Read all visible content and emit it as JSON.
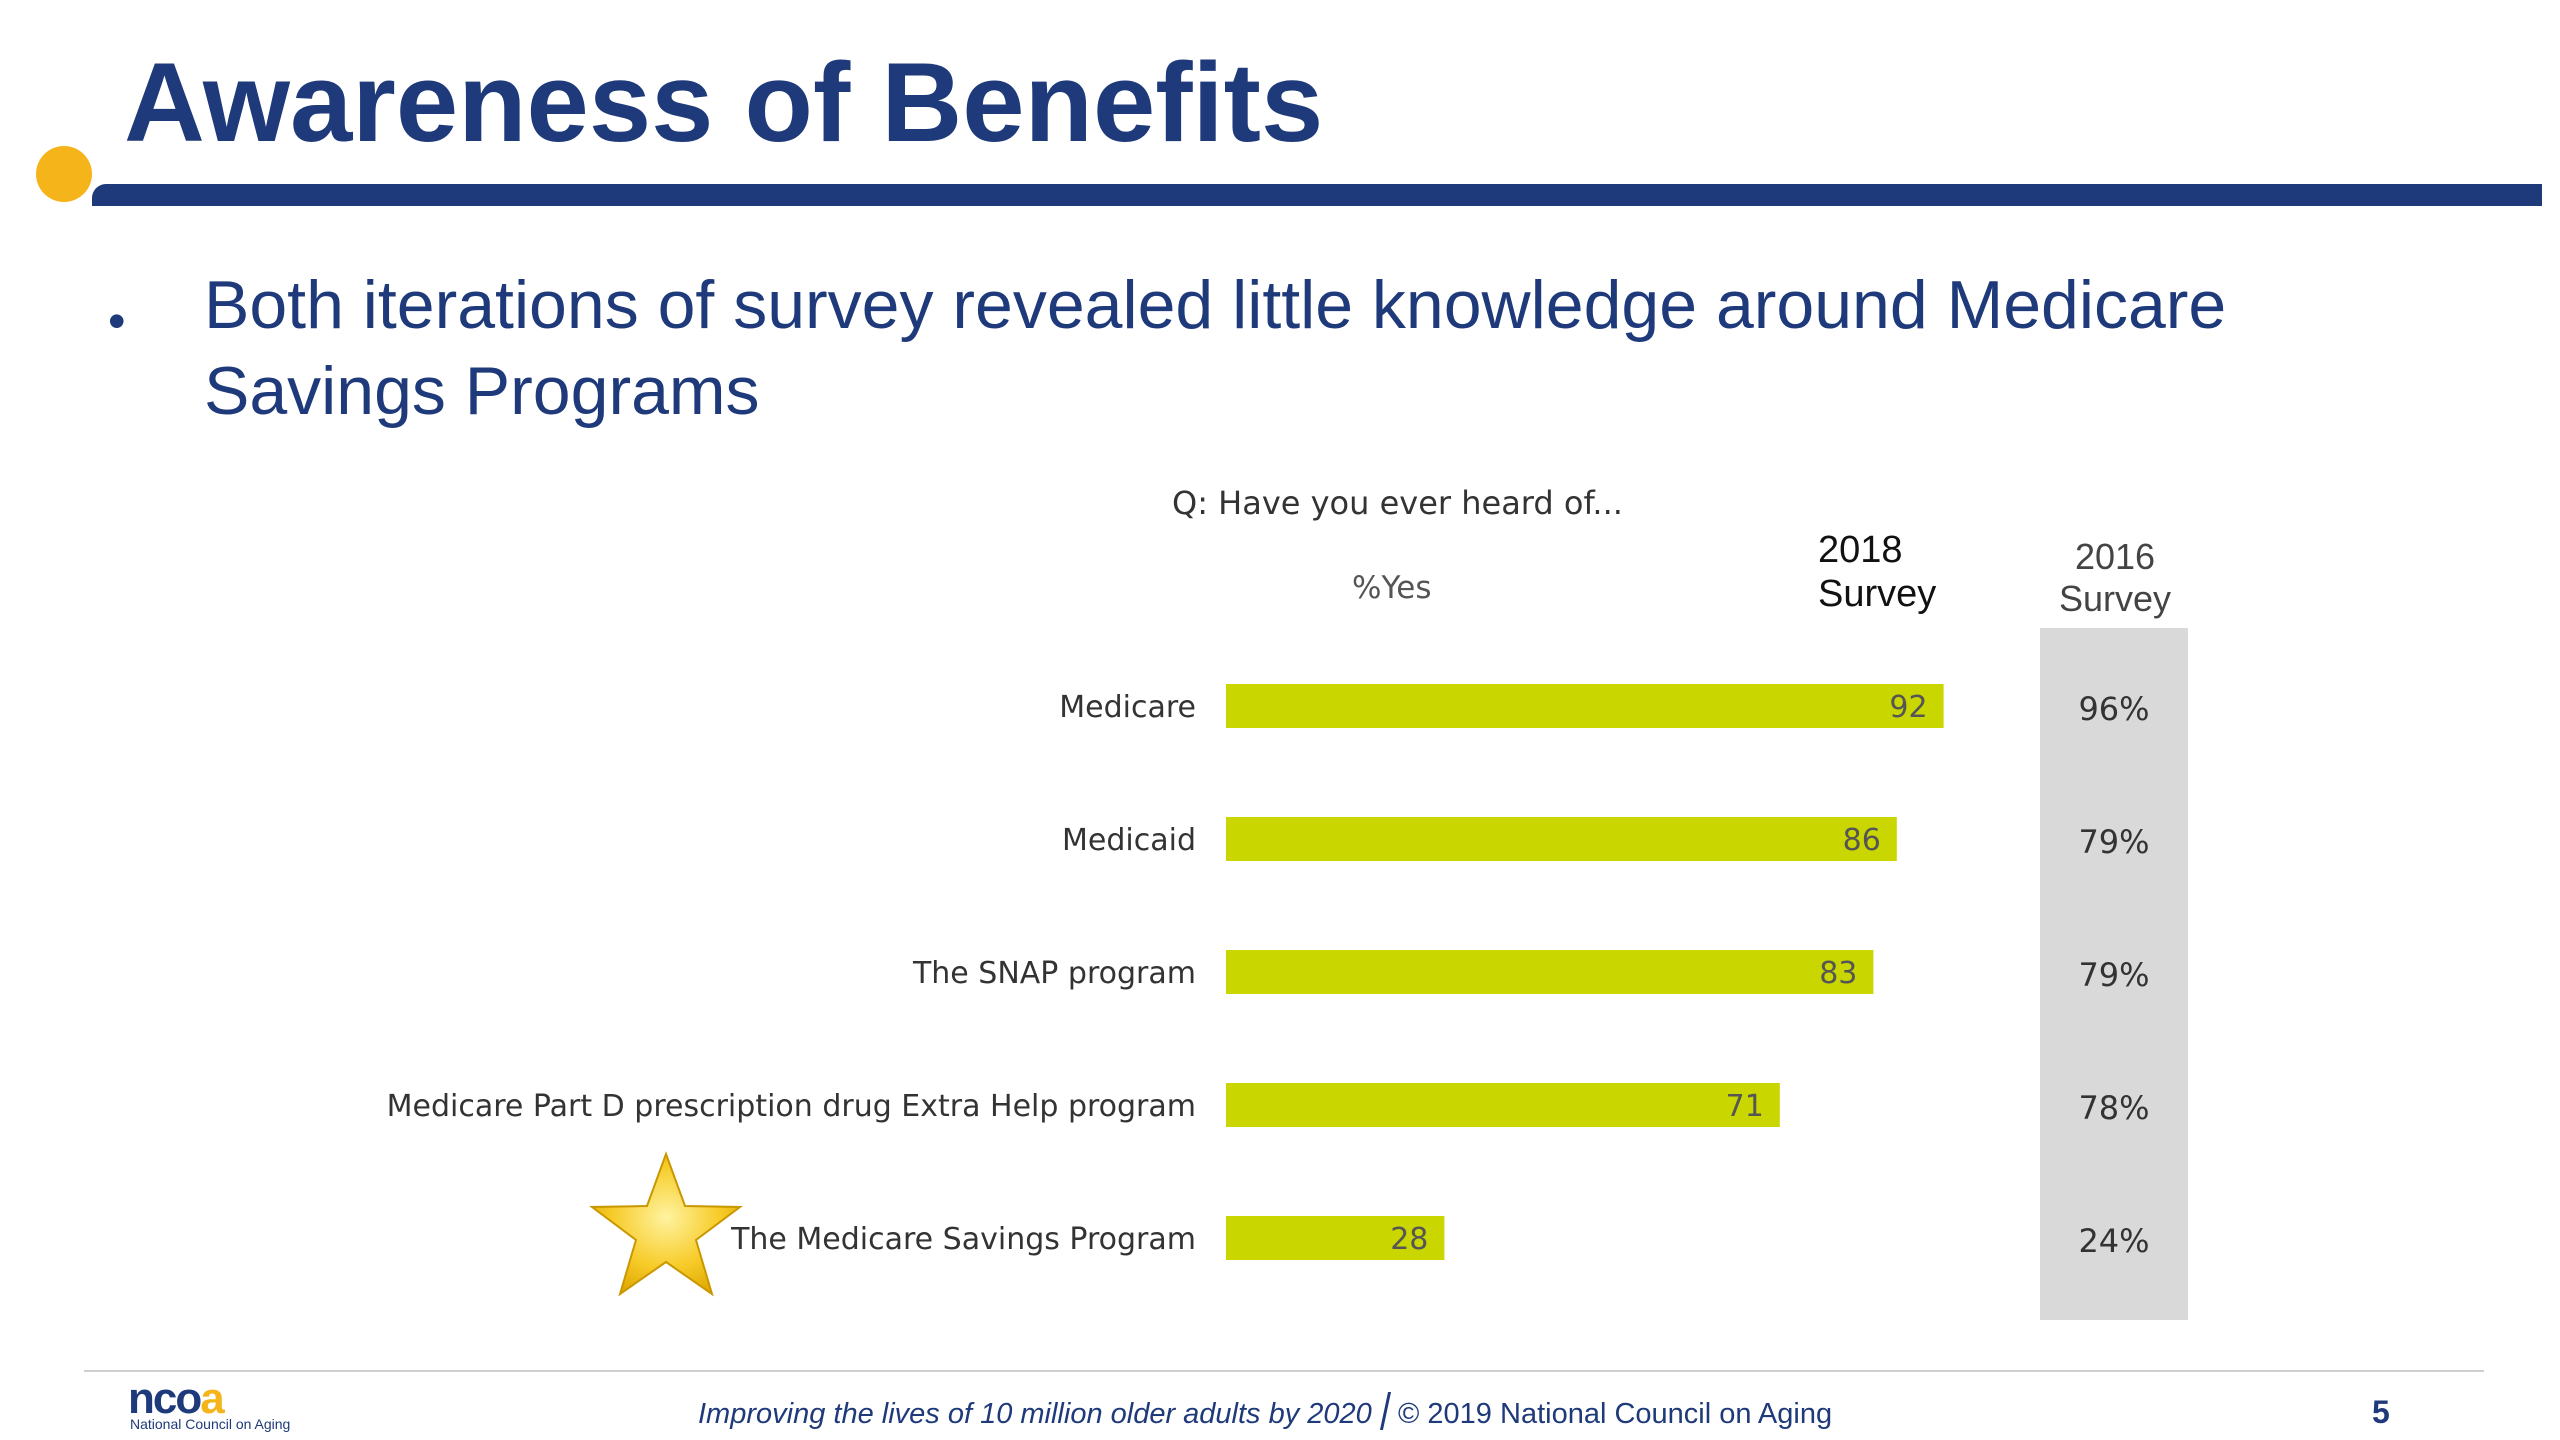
{
  "header": {
    "title": "Awareness of Benefits"
  },
  "bullet": {
    "marker": "•",
    "text": "Both iterations of survey revealed little knowledge around Medicare Savings Programs"
  },
  "chart_data": {
    "type": "bar",
    "orientation": "horizontal",
    "title": "Q: Have you ever heard of...",
    "value_label": "%Yes",
    "categories": [
      "Medicare",
      "Medicaid",
      "The SNAP program",
      "Medicare Part D prescription drug Extra Help program",
      "The Medicare Savings Program"
    ],
    "series": [
      {
        "name": "2018 Survey",
        "values": [
          92,
          86,
          83,
          71,
          28
        ],
        "color": "#c9d600"
      }
    ],
    "comparison_column": {
      "name": "2016 Survey",
      "values": [
        "96%",
        "79%",
        "79%",
        "78%",
        "24%"
      ],
      "background": "#d9d9d9"
    },
    "xlim": [
      0,
      100
    ],
    "grid": false,
    "highlight": {
      "category": "The Medicare Savings Program",
      "icon": "star-icon",
      "color": "#f6c21b"
    }
  },
  "columns": {
    "c2018": "2018 Survey",
    "c2016": "2016 Survey"
  },
  "footer": {
    "logo": "ncoa",
    "logo_subtitle": "National Council on Aging",
    "tagline": "Improving the lives of 10 million older adults by 2020",
    "copyright": "© 2019 National Council on Aging",
    "page": "5"
  }
}
